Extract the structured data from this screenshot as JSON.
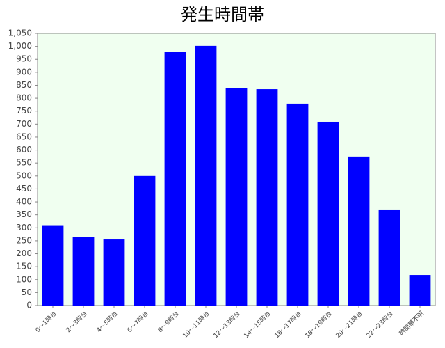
{
  "chart_data": {
    "type": "bar",
    "title": "発生時間帯",
    "categories": [
      "0〜1時台",
      "2〜3時台",
      "4〜5時台",
      "6〜7時台",
      "8〜9時台",
      "10〜11時台",
      "12〜13時台",
      "14〜15時台",
      "16〜17時台",
      "18〜19時台",
      "20〜21時台",
      "22〜23時台",
      "時間帯不明"
    ],
    "values": [
      310,
      265,
      255,
      500,
      978,
      1002,
      840,
      835,
      779,
      709,
      575,
      368,
      118
    ],
    "color": "#0000ff",
    "ylim": [
      0,
      1050
    ],
    "yticks": [
      0,
      50,
      100,
      150,
      200,
      250,
      300,
      350,
      400,
      450,
      500,
      550,
      600,
      650,
      700,
      750,
      800,
      850,
      900,
      950,
      {
        "value": 1000,
        "label": "1,000"
      },
      {
        "value": 1050,
        "label": "1,050"
      }
    ],
    "grid": false
  }
}
